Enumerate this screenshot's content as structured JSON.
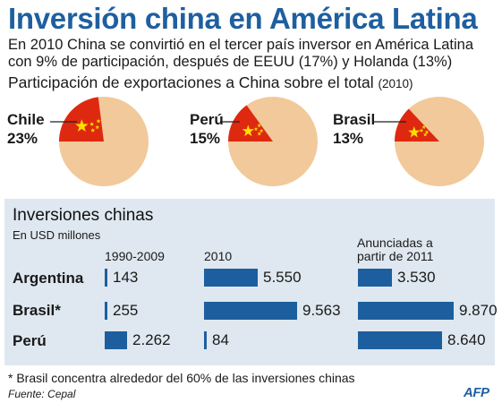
{
  "header": {
    "title": "Inversión china en América Latina",
    "intro": "En 2010 China se convirtió en el tercer país inversor en América Latina con 9% de participación, después de EEUU (17%) y Holanda (13%)",
    "subtitle": "Participación de exportaciones a China sobre el total",
    "subtitle_year": "(2010)"
  },
  "chart_data": [
    {
      "type": "pie",
      "title": "Participación de exportaciones a China sobre el total (2010)",
      "slices": [
        {
          "country": "Chile",
          "value": 23,
          "label": "23%"
        },
        {
          "country": "Perú",
          "value": 15,
          "label": "15%"
        },
        {
          "country": "Brasil",
          "value": 13,
          "label": "13%"
        }
      ],
      "colors": {
        "china": "#de2910",
        "rest": "#f2c99a",
        "stars": "#ffde00"
      }
    },
    {
      "type": "bar",
      "title": "Inversiones chinas",
      "unit": "En USD millones",
      "categories": [
        "Argentina",
        "Brasil*",
        "Perú"
      ],
      "series": [
        {
          "name": "1990-2009",
          "values": [
            143,
            255,
            2262
          ],
          "labels": [
            "143",
            "255",
            "2.262"
          ]
        },
        {
          "name": "2010",
          "values": [
            5550,
            9563,
            84
          ],
          "labels": [
            "5.550",
            "9.563",
            "84"
          ]
        },
        {
          "name": "Anunciadas a partir de 2011",
          "name_lines": [
            "Anunciadas a",
            "partir de 2011"
          ],
          "values": [
            3530,
            9870,
            8640
          ],
          "labels": [
            "3.530",
            "9.870",
            "8.640"
          ]
        }
      ],
      "bar_color": "#1d5f9e"
    }
  ],
  "footnote": "* Brasil concentra alrededor del 60% de las inversiones chinas",
  "source": "Fuente: Cepal",
  "logo": "AFP"
}
